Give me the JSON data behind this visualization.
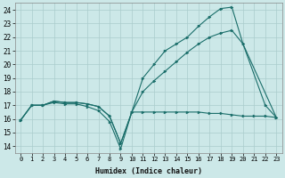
{
  "xlabel": "Humidex (Indice chaleur)",
  "bg_color": "#cce8e8",
  "grid_color": "#aacccc",
  "line_color": "#1a6e6a",
  "xlim": [
    -0.5,
    23.5
  ],
  "ylim": [
    13.5,
    24.5
  ],
  "xticks": [
    0,
    1,
    2,
    3,
    4,
    5,
    6,
    7,
    8,
    9,
    10,
    11,
    12,
    13,
    14,
    15,
    16,
    17,
    18,
    19,
    20,
    21,
    22,
    23
  ],
  "yticks": [
    14,
    15,
    16,
    17,
    18,
    19,
    20,
    21,
    22,
    23,
    24
  ],
  "s1_x": [
    0,
    1,
    2,
    3,
    4,
    5,
    6,
    7,
    8,
    9,
    10,
    11,
    12,
    13,
    14,
    15,
    16,
    17,
    18,
    19,
    20,
    21,
    22,
    23
  ],
  "s1_y": [
    15.9,
    17.0,
    17.0,
    17.2,
    17.1,
    17.1,
    16.9,
    16.6,
    15.8,
    13.8,
    16.5,
    16.5,
    16.5,
    16.5,
    16.5,
    16.5,
    16.5,
    16.4,
    16.4,
    16.3,
    16.2,
    16.2,
    16.2,
    16.1
  ],
  "s2_x": [
    0,
    1,
    2,
    3,
    4,
    5,
    6,
    7,
    8,
    9,
    10,
    11,
    12,
    13,
    14,
    15,
    16,
    17,
    18,
    19,
    20,
    23
  ],
  "s2_y": [
    15.9,
    17.0,
    17.0,
    17.3,
    17.2,
    17.2,
    17.1,
    16.9,
    16.2,
    14.2,
    16.5,
    18.0,
    18.8,
    19.5,
    20.2,
    20.9,
    21.5,
    22.0,
    22.3,
    22.5,
    21.5,
    16.1
  ],
  "s3_x": [
    0,
    1,
    2,
    3,
    4,
    5,
    6,
    7,
    8,
    9,
    10,
    11,
    12,
    13,
    14,
    15,
    16,
    17,
    18,
    19,
    20,
    22,
    23
  ],
  "s3_y": [
    15.9,
    17.0,
    17.0,
    17.3,
    17.2,
    17.2,
    17.1,
    16.9,
    16.2,
    14.2,
    16.5,
    19.0,
    20.0,
    21.0,
    21.5,
    22.0,
    22.8,
    23.5,
    24.1,
    24.2,
    21.5,
    17.0,
    16.1
  ]
}
